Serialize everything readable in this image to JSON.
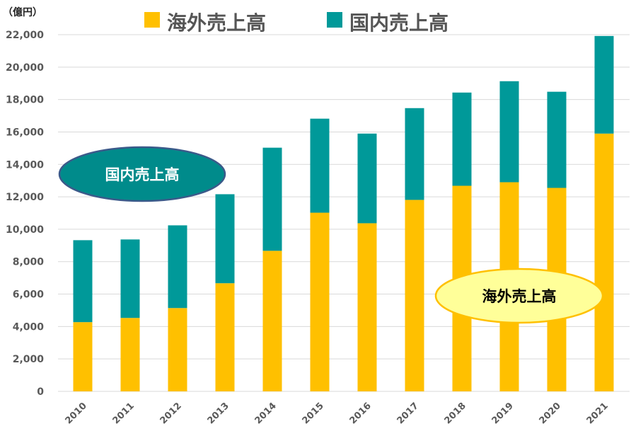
{
  "chart_data": {
    "type": "bar",
    "stacked": true,
    "unit_label": "（億円）",
    "categories": [
      "2010",
      "2011",
      "2012",
      "2013",
      "2014",
      "2015",
      "2016",
      "2017",
      "2018",
      "2019",
      "2020",
      "2021"
    ],
    "series": [
      {
        "name": "海外売上高",
        "color": "#FFC000",
        "values": [
          4270,
          4530,
          5140,
          6670,
          8670,
          11020,
          10370,
          11810,
          12680,
          12900,
          12550,
          15900
        ]
      },
      {
        "name": "国内売上高",
        "color": "#009999",
        "values": [
          5055,
          4840,
          5100,
          5490,
          6360,
          5800,
          5530,
          5660,
          5750,
          6230,
          5930,
          6020
        ]
      }
    ],
    "ylim": [
      0,
      22000
    ],
    "yticks": [
      "0",
      "2,000",
      "4,000",
      "6,000",
      "8,000",
      "10,000",
      "12,000",
      "14,000",
      "16,000",
      "18,000",
      "20,000",
      "22,000"
    ],
    "grid": true,
    "legend_position": "top",
    "annotations": [
      {
        "text": "国内売上高",
        "fill": "#008B8B",
        "text_color": "#ffffff"
      },
      {
        "text": "海外売上高",
        "fill": "#FFFF99",
        "text_color": "#000000"
      }
    ]
  }
}
